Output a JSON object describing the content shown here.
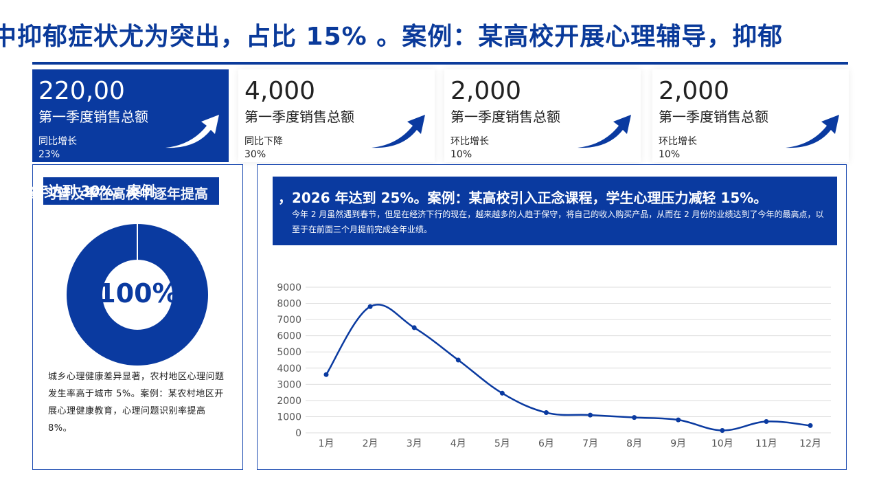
{
  "headline": "中抑郁症状尤为突出，占比 15% 。案例：某高校开展心理辅导，抑郁",
  "kpis": [
    {
      "value": "220,00",
      "label": "第一季度销售总额",
      "sub_label": "同比增长",
      "sub_value": "23%"
    },
    {
      "value": "4,000",
      "label": "第一季度销售总额",
      "sub_label": "同比下降",
      "sub_value": "30%"
    },
    {
      "value": "2,000",
      "label": "第一季度销售总额",
      "sub_label": "环比增长",
      "sub_value": "10%"
    },
    {
      "value": "2,000",
      "label": "第一季度销售总额",
      "sub_label": "环比增长",
      "sub_value": "10%"
    }
  ],
  "left_panel": {
    "tag_text_a": "正念练习普及率在高校中逐年提高",
    "tag_text_b": "2024 年达到 30%。案例",
    "tag_text_c": "30%",
    "donut_label": "100%",
    "donut_percent": 100,
    "description": "城乡心理健康差异显著，农村地区心理问题发生率高于城市 5%。案例：某农村地区开展心理健康教育，心理问题识别率提高 8%。"
  },
  "right_panel": {
    "title_overflow": "，2026 年达到 25%。案例：某高校引入正念课程，学生心理压力减轻 15%。",
    "description": "今年 2 月虽然遇到春节，但是在经济下行的现在，越来越多的人趋于保守，将自己的收入购买产品，从而在 2 月份的业绩达到了今年的最高点，以至于在前面三个月提前完成全年业绩。"
  },
  "colors": {
    "primary": "#0a3aa0",
    "line": "#0a3aa0",
    "grid": "#dddddd"
  },
  "chart_data": {
    "type": "line",
    "categories": [
      "1月",
      "2月",
      "3月",
      "4月",
      "5月",
      "6月",
      "7月",
      "8月",
      "9月",
      "10月",
      "11月",
      "12月"
    ],
    "values": [
      3600,
      7800,
      6500,
      4500,
      2450,
      1250,
      1100,
      950,
      800,
      150,
      700,
      450
    ],
    "ylim": [
      0,
      9000
    ],
    "yticks": [
      0,
      1000,
      2000,
      3000,
      4000,
      5000,
      6000,
      7000,
      8000,
      9000
    ],
    "smooth": true,
    "grid": true,
    "title": "",
    "xlabel": "",
    "ylabel": ""
  }
}
